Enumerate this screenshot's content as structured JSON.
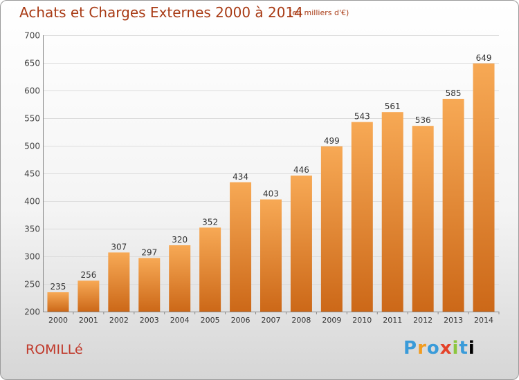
{
  "header": {
    "title": "Achats et Charges Externes 2000 à 2014",
    "unit": "(en milliers d'€)"
  },
  "footer": {
    "city": "ROMILLé",
    "logo_text": "Proxiti"
  },
  "colors": {
    "bar_light": "#f7a955",
    "bar_dark": "#cc6818",
    "title": "#a83a14",
    "city": "#c0392b"
  },
  "chart_data": {
    "type": "bar",
    "title": "Achats et Charges Externes 2000 à 2014",
    "subtitle": "(en milliers d'€)",
    "xlabel": "",
    "ylabel": "",
    "categories": [
      "2000",
      "2001",
      "2002",
      "2003",
      "2004",
      "2005",
      "2006",
      "2007",
      "2008",
      "2009",
      "2010",
      "2011",
      "2012",
      "2013",
      "2014"
    ],
    "values": [
      235,
      256,
      307,
      297,
      320,
      352,
      434,
      403,
      446,
      499,
      543,
      561,
      536,
      585,
      649
    ],
    "ylim": [
      200,
      700
    ],
    "yticks": [
      200,
      250,
      300,
      350,
      400,
      450,
      500,
      550,
      600,
      650,
      700
    ],
    "grid": true,
    "legend": "none"
  }
}
